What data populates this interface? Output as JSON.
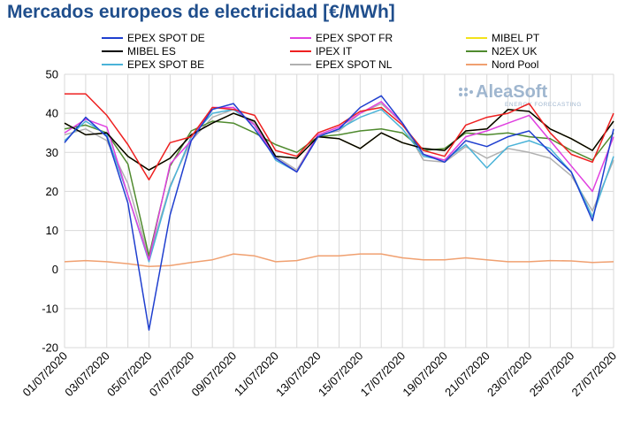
{
  "header": {
    "title": "Mercados europeos de electricidad [€/MWh]"
  },
  "logo": {
    "name": "AleaSoft",
    "tagline": "ENERGY FORECASTING"
  },
  "chart_data": {
    "type": "line",
    "title": "Mercados europeos de electricidad [€/MWh]",
    "xlabel": "",
    "ylabel": "",
    "ylim": [
      -20,
      50
    ],
    "yticks": [
      -20,
      -10,
      0,
      10,
      20,
      30,
      40,
      50
    ],
    "grid": true,
    "legend_position": "top",
    "x": [
      "01/07/2020",
      "02/07/2020",
      "03/07/2020",
      "04/07/2020",
      "05/07/2020",
      "06/07/2020",
      "07/07/2020",
      "08/07/2020",
      "09/07/2020",
      "10/07/2020",
      "11/07/2020",
      "12/07/2020",
      "13/07/2020",
      "14/07/2020",
      "15/07/2020",
      "16/07/2020",
      "17/07/2020",
      "18/07/2020",
      "19/07/2020",
      "20/07/2020",
      "21/07/2020",
      "22/07/2020",
      "23/07/2020",
      "24/07/2020",
      "25/07/2020",
      "26/07/2020",
      "27/07/2020"
    ],
    "xtick_labels": [
      "01/07/2020",
      "03/07/2020",
      "05/07/2020",
      "07/07/2020",
      "09/07/2020",
      "11/07/2020",
      "13/07/2020",
      "15/07/2020",
      "17/07/2020",
      "19/07/2020",
      "21/07/2020",
      "23/07/2020",
      "25/07/2020",
      "27/07/2020"
    ],
    "series": [
      {
        "name": "EPEX SPOT DE",
        "color": "#1f3fcf",
        "values": [
          32.5,
          39,
          34,
          17,
          -15.5,
          14,
          33,
          41,
          42.5,
          36,
          28.5,
          25,
          34,
          36,
          41.5,
          44.5,
          37.5,
          29.5,
          27.5,
          33,
          31.5,
          34,
          35.5,
          30,
          25,
          12.5,
          36
        ]
      },
      {
        "name": "MIBEL ES",
        "color": "#000000",
        "values": [
          37.5,
          34.5,
          35,
          29,
          25.5,
          28.5,
          34.5,
          37.5,
          40,
          38,
          29,
          28.5,
          34,
          33.5,
          31,
          35,
          32.5,
          31,
          30.5,
          35.5,
          36,
          41,
          40.5,
          36,
          33.5,
          30.5,
          38
        ]
      },
      {
        "name": "EPEX SPOT BE",
        "color": "#4ab3d8",
        "values": [
          33,
          38,
          34.5,
          19,
          2,
          21,
          34,
          40,
          41,
          37,
          28,
          25,
          34,
          36,
          39,
          41,
          36,
          29,
          28,
          32,
          26,
          31.5,
          33,
          31,
          25,
          13.5,
          29
        ]
      },
      {
        "name": "EPEX SPOT FR",
        "color": "#e040e0",
        "values": [
          35,
          38.5,
          36.5,
          19,
          2.5,
          27,
          33,
          41.5,
          41.5,
          37,
          28.5,
          25,
          34.5,
          36.5,
          40,
          43,
          37.5,
          29.5,
          28,
          34,
          35.5,
          37.5,
          39.5,
          33,
          26.5,
          20,
          34
        ]
      },
      {
        "name": "IPEX IT",
        "color": "#ee2020",
        "values": [
          45,
          45,
          39.5,
          32,
          23,
          32.5,
          34,
          41.5,
          41,
          39.5,
          30.5,
          29,
          35,
          37,
          40.5,
          41.5,
          37,
          30.5,
          29,
          37,
          39,
          40,
          42.5,
          35,
          29.5,
          27.5,
          40
        ]
      },
      {
        "name": "EPEX SPOT NL",
        "color": "#b0b0b0",
        "values": [
          34.5,
          36,
          33,
          22,
          3,
          21.5,
          33,
          39,
          41,
          37.5,
          29,
          25.5,
          34.5,
          35.5,
          40,
          42.5,
          37.5,
          28,
          27.5,
          31.5,
          28.5,
          31,
          30,
          28.5,
          24,
          15,
          28
        ]
      },
      {
        "name": "MIBEL PT",
        "color": "#f2e21a",
        "values": [
          37.5,
          34.5,
          35,
          29,
          25.5,
          28.5,
          34.5,
          37.5,
          40,
          38,
          29,
          28.5,
          34,
          33.5,
          31,
          35,
          32.5,
          31,
          30.5,
          35.5,
          36,
          41,
          40.5,
          36,
          33.5,
          30.5,
          38
        ]
      },
      {
        "name": "N2EX UK",
        "color": "#4f8a2e",
        "values": [
          36,
          37,
          35,
          27,
          3.5,
          26.5,
          35.5,
          38,
          37.5,
          35,
          32,
          30,
          34,
          34.5,
          35.5,
          36,
          35,
          30.5,
          31,
          35,
          34.5,
          35,
          34,
          33.5,
          30.5,
          28,
          35
        ]
      },
      {
        "name": "Nord Pool",
        "color": "#f0a070",
        "values": [
          2,
          2.3,
          2,
          1.5,
          0.8,
          1,
          1.8,
          2.5,
          4,
          3.5,
          2,
          2.3,
          3.5,
          3.5,
          4,
          4,
          3,
          2.5,
          2.5,
          3,
          2.5,
          2,
          2,
          2.3,
          2.2,
          1.8,
          2
        ]
      }
    ]
  }
}
